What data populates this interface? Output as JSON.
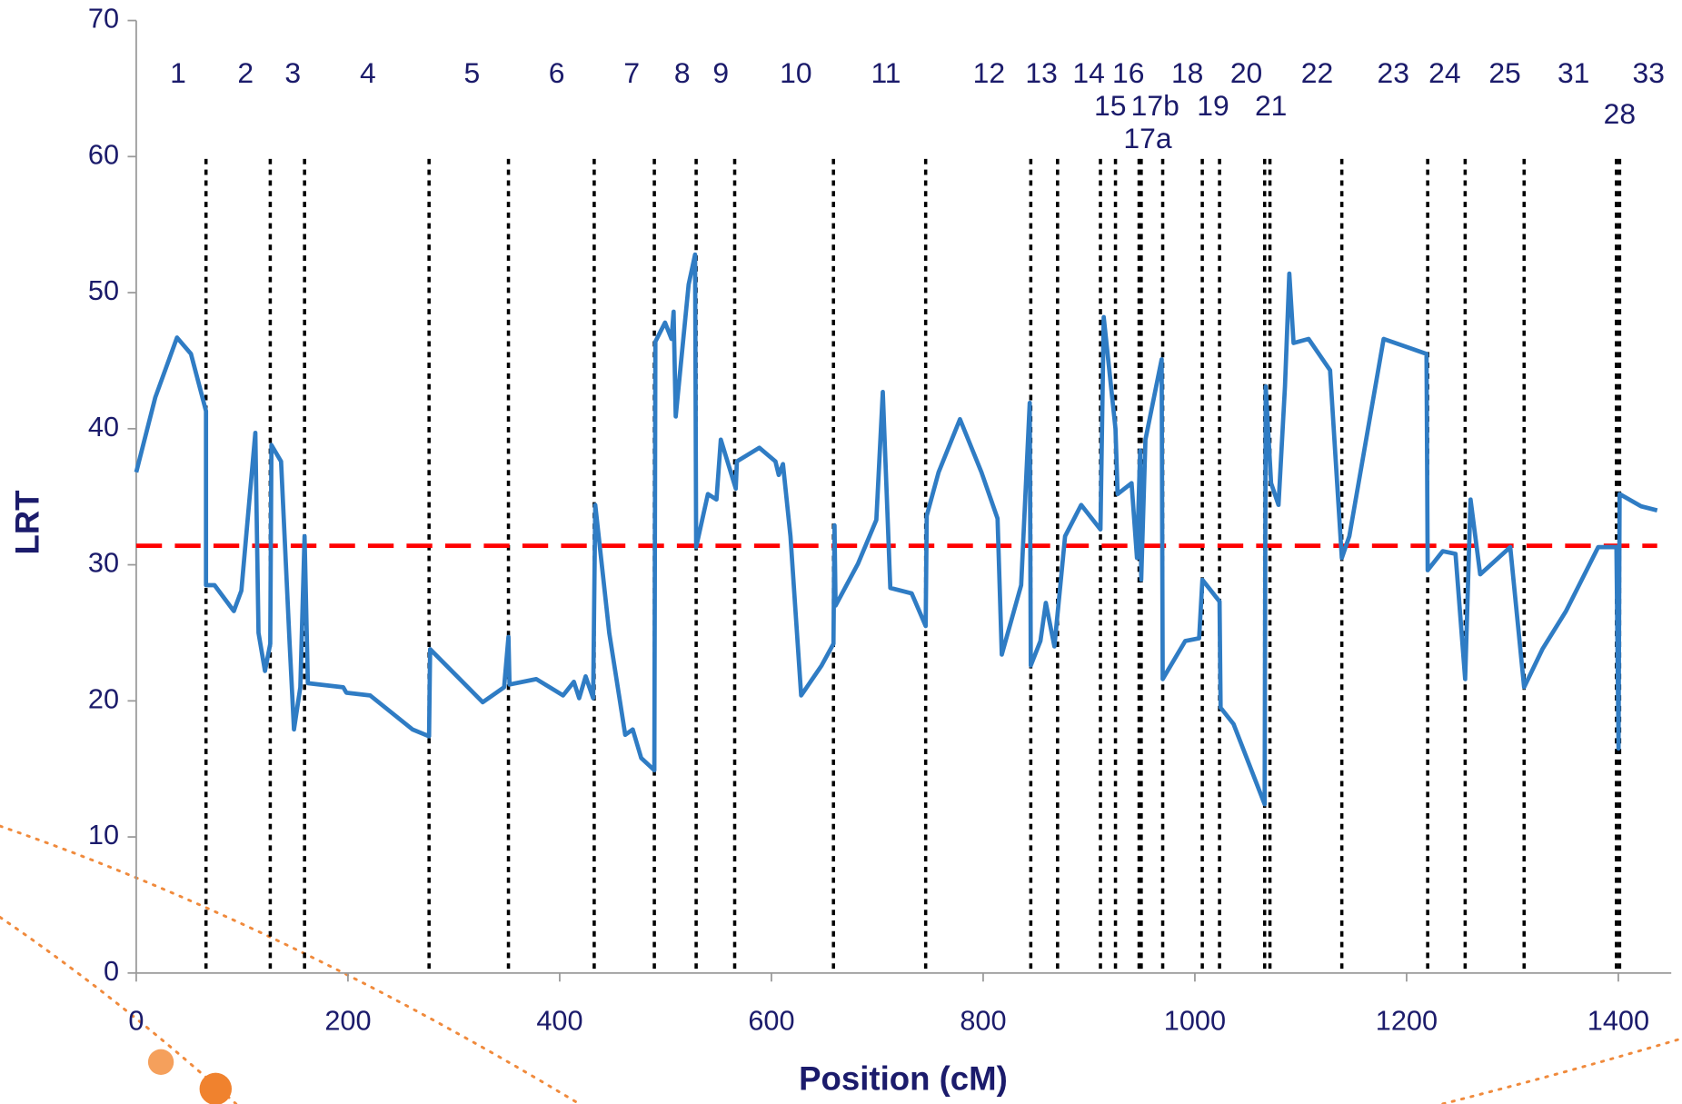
{
  "chart_data": {
    "type": "line",
    "x_label": "Position (cM)",
    "y_label": "LRT",
    "xlim": [
      0,
      1450
    ],
    "xticks": [
      0,
      200,
      400,
      600,
      800,
      1000,
      1200,
      1400
    ],
    "ylim": [
      0,
      70
    ],
    "yticks": [
      0,
      10,
      20,
      30,
      40,
      50,
      60,
      70
    ],
    "color": "#2f7cc4",
    "x": [
      0,
      18,
      38.5,
      51.7,
      65.9,
      65.9,
      74,
      92.2,
      99.3,
      112.5,
      115.5,
      121.6,
      126.6,
      127.7,
      136.8,
      144.9,
      149,
      155,
      159,
      162.1,
      195.5,
      198.5,
      220.9,
      261,
      276.6,
      277.6,
      327.3,
      347.5,
      351.6,
      352.6,
      377.9,
      403.2,
      413.4,
      418.4,
      424.5,
      431.6,
      433.6,
      446.8,
      461.9,
      469,
      477,
      489.4,
      490.4,
      499.5,
      505.6,
      507.6,
      509.6,
      521.8,
      527.9,
      528.9,
      540,
      548.1,
      552.2,
      566.3,
      567.4,
      588.6,
      603.8,
      606.9,
      610.9,
      618,
      628.1,
      647.4,
      658.6,
      659.6,
      660.6,
      681.9,
      699.1,
      705.2,
      712.3,
      732.5,
      745.7,
      746.7,
      757.9,
      778.1,
      798.4,
      813.6,
      817.6,
      835.9,
      844,
      845,
      854.1,
      859.2,
      867.3,
      877.4,
      892.6,
      910.8,
      913.9,
      925,
      927,
      940.2,
      945.3,
      948.3,
      949.3,
      953.3,
      968.6,
      969.6,
      990.9,
      1004,
      1007.1,
      1023.3,
      1024.3,
      1036.5,
      1065.9,
      1066.9,
      1072,
      1079,
      1085.1,
      1089.2,
      1093.2,
      1107.4,
      1127.7,
      1138.8,
      1145.9,
      1178.3,
      1218.8,
      1219.9,
      1234.1,
      1246.2,
      1255.3,
      1260.4,
      1269.5,
      1297.9,
      1311,
      1328.3,
      1350.6,
      1381,
      1398.2,
      1400.2,
      1401.2,
      1421.5,
      1436.7
    ],
    "values": [
      36.8,
      42.3,
      46.7,
      45.5,
      41.3,
      28.5,
      28.5,
      26.6,
      28.1,
      39.7,
      25,
      22.2,
      24.2,
      38.8,
      37.6,
      24.2,
      17.9,
      21,
      32.1,
      21.3,
      21,
      20.6,
      20.4,
      17.9,
      17.4,
      23.8,
      19.9,
      21,
      24.7,
      21.2,
      21.6,
      20.4,
      21.4,
      20.2,
      21.8,
      20.2,
      34.4,
      25,
      17.5,
      17.9,
      15.8,
      14.9,
      46.4,
      47.8,
      46.6,
      48.6,
      40.9,
      50.6,
      52.8,
      31.3,
      35.2,
      34.8,
      39.2,
      35.6,
      37.6,
      38.6,
      37.6,
      36.6,
      37.4,
      32.1,
      20.4,
      22.6,
      24.2,
      32.9,
      27,
      30.1,
      33.3,
      42.7,
      28.3,
      27.9,
      25.5,
      33.6,
      36.8,
      40.7,
      36.8,
      33.4,
      23.4,
      28.5,
      41.9,
      22.6,
      24.4,
      27.2,
      24,
      32.1,
      34.4,
      32.6,
      48.2,
      40,
      35.2,
      36,
      30.5,
      38.4,
      28.9,
      39.2,
      45.1,
      21.6,
      24.4,
      24.6,
      28.9,
      27.3,
      19.5,
      18.3,
      12.4,
      43.1,
      36,
      34.4,
      43.1,
      51.4,
      46.3,
      46.6,
      44.3,
      30.5,
      32.1,
      46.6,
      45.5,
      29.6,
      31,
      30.8,
      21.6,
      34.8,
      29.3,
      31.3,
      21,
      23.8,
      26.6,
      31.3,
      31.3,
      16.5,
      35.2,
      34.3,
      34
    ],
    "threshold": {
      "value": 31.4,
      "color": "#ff0000"
    },
    "boundaries": [
      65.9,
      126.6,
      159,
      276.6,
      351.6,
      432.6,
      489.4,
      528.9,
      565.3,
      658.6,
      745.7,
      845,
      870.3,
      910.8,
      925,
      947.3,
      949.3,
      969.6,
      1007,
      1023.3,
      1065.9,
      1070.9,
      1138.8,
      1219.9,
      1255.3,
      1311,
      1398.2,
      1401.2
    ],
    "annotations": [
      {
        "text": "1",
        "x": 39.5,
        "y": 66
      },
      {
        "text": "2",
        "x": 103.3,
        "y": 66
      },
      {
        "text": "3",
        "x": 147.9,
        "y": 66
      },
      {
        "text": "4",
        "x": 218.8,
        "y": 66
      },
      {
        "text": "5",
        "x": 317.1,
        "y": 66
      },
      {
        "text": "6",
        "x": 397.2,
        "y": 66
      },
      {
        "text": "7",
        "x": 468.1,
        "y": 66
      },
      {
        "text": "8",
        "x": 515.7,
        "y": 66
      },
      {
        "text": "9",
        "x": 552.2,
        "y": 66
      },
      {
        "text": "10",
        "x": 623.1,
        "y": 66
      },
      {
        "text": "11",
        "x": 708.2,
        "y": 66
      },
      {
        "text": "12",
        "x": 805.5,
        "y": 66
      },
      {
        "text": "13",
        "x": 855.1,
        "y": 66
      },
      {
        "text": "14",
        "x": 899.7,
        "y": 66
      },
      {
        "text": "16",
        "x": 937.2,
        "y": 66
      },
      {
        "text": "18",
        "x": 992.9,
        "y": 66
      },
      {
        "text": "20",
        "x": 1048.6,
        "y": 66
      },
      {
        "text": "22",
        "x": 1115.5,
        "y": 66
      },
      {
        "text": "23",
        "x": 1187.4,
        "y": 66
      },
      {
        "text": "24",
        "x": 1236,
        "y": 66
      },
      {
        "text": "25",
        "x": 1292.8,
        "y": 66
      },
      {
        "text": "31",
        "x": 1357.7,
        "y": 66
      },
      {
        "text": "33",
        "x": 1428.6,
        "y": 66
      },
      {
        "text": "15",
        "x": 920,
        "y": 63.6
      },
      {
        "text": "17b",
        "x": 962.5,
        "y": 63.6
      },
      {
        "text": "19",
        "x": 1017.2,
        "y": 63.6
      },
      {
        "text": "21",
        "x": 1071.9,
        "y": 63.6
      },
      {
        "text": "28",
        "x": 1401.2,
        "y": 63
      },
      {
        "text": "17a",
        "x": 955.4,
        "y": 61.2
      }
    ]
  }
}
